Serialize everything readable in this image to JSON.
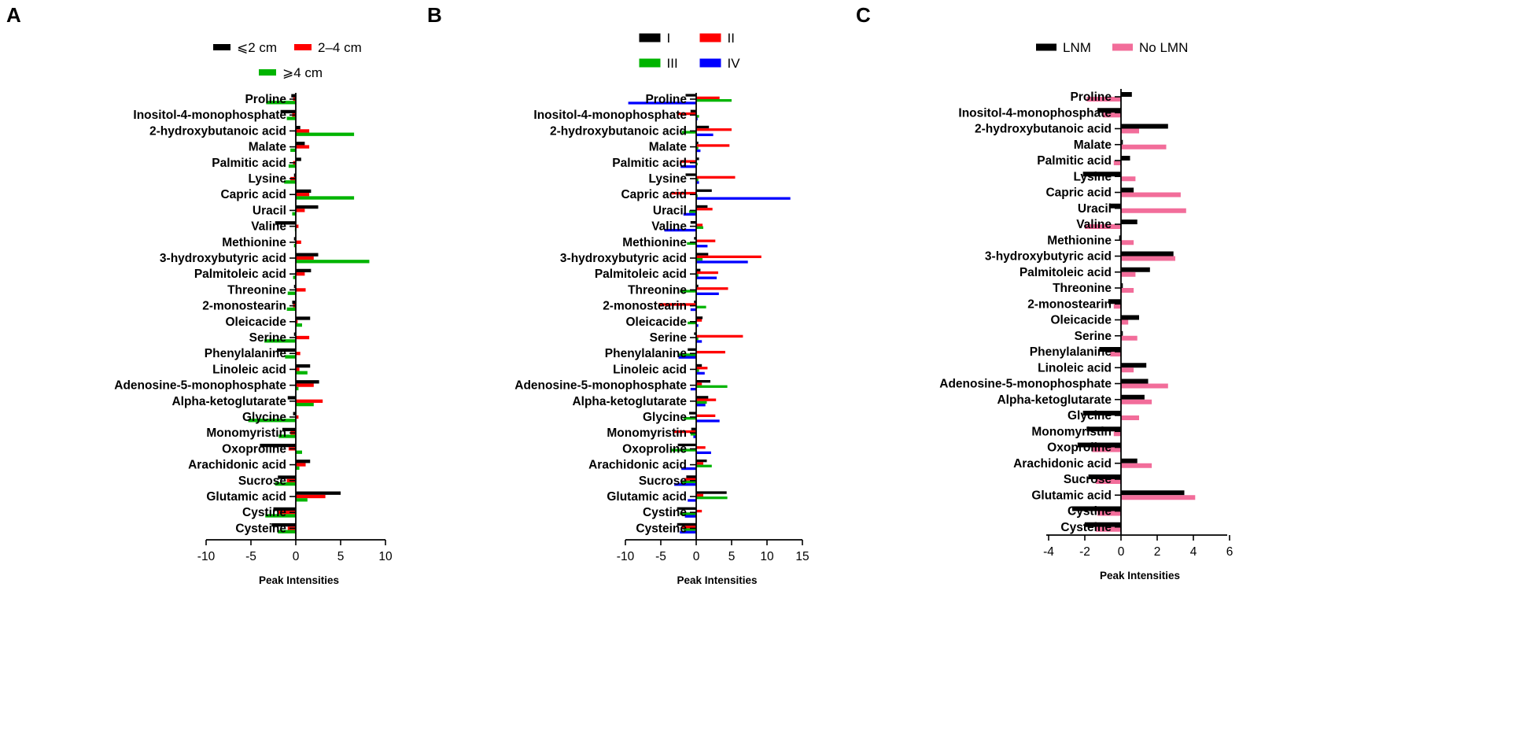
{
  "chart_data": [
    {
      "panel": "A",
      "type": "bar",
      "orientation": "horizontal",
      "xlabel": "Peak Intensities",
      "xlim": [
        -10,
        10
      ],
      "xticks": [
        -10,
        -5,
        0,
        5,
        10
      ],
      "categories": [
        "Proline",
        "Inositol-4-monophosphate",
        "2-hydroxybutanoic acid",
        "Malate",
        "Palmitic acid",
        "Lysine",
        "Capric acid",
        "Uracil",
        "Valine",
        "Methionine",
        "3-hydroxybutyric acid",
        "Palmitoleic acid",
        "Threonine",
        "2-monostearin",
        "Oleicacide",
        "Serine",
        "Phenylalanine",
        "Linoleic acid",
        "Adenosine-5-monophosphate",
        "Alpha-ketoglutarate",
        "Glycine",
        "Monomyristin",
        "Oxoproline",
        "Arachidonic acid",
        "Sucrose",
        "Glutamic acid",
        "Cystine",
        "Cysteine"
      ],
      "series": [
        {
          "name": "⩽2 cm",
          "color": "#000000",
          "values": [
            -0.5,
            -1.7,
            0.5,
            1.0,
            0.6,
            -0.2,
            1.7,
            2.5,
            -2.3,
            -0.2,
            2.5,
            1.7,
            -0.2,
            -0.4,
            1.6,
            -0.2,
            -2.1,
            1.6,
            2.6,
            -0.9,
            -0.3,
            -1.5,
            -4.0,
            1.6,
            -2.0,
            5.0,
            -2.5,
            -2.7
          ]
        },
        {
          "name": "2–4 cm",
          "color": "#ff0000",
          "values": [
            -0.3,
            -0.4,
            1.5,
            1.5,
            -0.3,
            -0.6,
            1.5,
            1.0,
            0.3,
            0.6,
            2.0,
            1.0,
            1.1,
            -0.3,
            0.2,
            1.5,
            0.5,
            0.4,
            2.0,
            3.0,
            0.3,
            -0.6,
            -0.8,
            1.1,
            -1.0,
            3.3,
            -2.0,
            -0.9
          ]
        },
        {
          "name": "⩾4 cm",
          "color": "#00b400",
          "values": [
            -3.3,
            -1.0,
            6.5,
            -0.6,
            -0.8,
            -1.3,
            6.5,
            -0.4,
            -0.1,
            -0.2,
            8.2,
            -0.3,
            -0.9,
            -1.0,
            0.7,
            -3.5,
            -1.2,
            1.3,
            0.3,
            2.0,
            -5.3,
            -1.9,
            0.7,
            0.4,
            -2.3,
            1.3,
            -3.4,
            -2.0
          ]
        }
      ]
    },
    {
      "panel": "B",
      "type": "bar",
      "orientation": "horizontal",
      "xlabel": "Peak Intensities",
      "xlim": [
        -10,
        15
      ],
      "xticks": [
        -10,
        -5,
        0,
        5,
        10,
        15
      ],
      "categories": [
        "Proline",
        "Inositol-4-monophosphate",
        "2-hydroxybutanoic acid",
        "Malate",
        "Palmitic acid",
        "Lysine",
        "Capric acid",
        "Uracil",
        "Valine",
        "Methionine",
        "3-hydroxybutyric acid",
        "Palmitoleic acid",
        "Threonine",
        "2-monostearin",
        "Oleicacide",
        "Serine",
        "Phenylalanine",
        "Linoleic acid",
        "Adenosine-5-monophosphate",
        "Alpha-ketoglutarate",
        "Glycine",
        "Monomyristin",
        "Oxoproline",
        "Arachidonic acid",
        "Sucrose",
        "Glutamic acid",
        "Cystine",
        "Cysteine"
      ],
      "series": [
        {
          "name": "I",
          "color": "#000000",
          "values": [
            -1.5,
            -0.8,
            1.8,
            0.3,
            0.4,
            -1.5,
            2.2,
            1.6,
            -0.8,
            -0.3,
            1.7,
            0.6,
            0.3,
            -0.3,
            0.9,
            -0.3,
            -1.2,
            0.8,
            2.0,
            1.7,
            -1.0,
            -0.7,
            -2.6,
            1.5,
            -1.4,
            4.3,
            -2.7,
            -2.7
          ]
        },
        {
          "name": "II",
          "color": "#ff0000",
          "values": [
            3.3,
            -2.5,
            5.0,
            4.7,
            -2.3,
            5.5,
            -3.5,
            2.3,
            0.9,
            2.7,
            9.2,
            3.1,
            4.5,
            -5.3,
            0.8,
            6.6,
            4.1,
            1.6,
            0.8,
            2.8,
            2.7,
            -3.2,
            1.3,
            1.0,
            -1.7,
            1.0,
            0.8,
            -2.0
          ]
        },
        {
          "name": "III",
          "color": "#00b400",
          "values": [
            5.0,
            0.4,
            -2.0,
            0.3,
            0.2,
            0.3,
            0.2,
            -1.0,
            1.0,
            -1.3,
            0.9,
            0.3,
            -2.3,
            1.4,
            -1.2,
            0.3,
            -2.5,
            0.4,
            4.4,
            1.5,
            -1.8,
            -0.8,
            -3.5,
            2.2,
            -2.0,
            4.4,
            -2.3,
            -1.8
          ]
        },
        {
          "name": "IV",
          "color": "#0000ff",
          "values": [
            -9.6,
            0.2,
            2.4,
            0.6,
            -2.2,
            0.4,
            13.3,
            -1.8,
            -4.5,
            1.6,
            7.3,
            2.9,
            3.2,
            -0.8,
            0.3,
            0.8,
            -2.5,
            1.2,
            -0.8,
            1.3,
            3.3,
            -0.4,
            2.1,
            -2.1,
            -3.1,
            -1.2,
            -1.6,
            -2.3
          ]
        }
      ]
    },
    {
      "panel": "C",
      "type": "bar",
      "orientation": "horizontal",
      "xlabel": "Peak Intensities",
      "xlim": [
        -4,
        6
      ],
      "xticks": [
        -4,
        -2,
        0,
        2,
        4,
        6
      ],
      "categories": [
        "Proline",
        "Inositol-4-monophosphate",
        "2-hydroxybutanoic acid",
        "Malate",
        "Palmitic acid",
        "Lysine",
        "Capric acid",
        "Uracil",
        "Valine",
        "Methionine",
        "3-hydroxybutyric acid",
        "Palmitoleic acid",
        "Threonine",
        "2-monostearin",
        "Oleicacide",
        "Serine",
        "Phenylalanine",
        "Linoleic acid",
        "Adenosine-5-monophosphate",
        "Alpha-ketoglutarate",
        "Glycine",
        "Monomyristin",
        "Oxoproline",
        "Arachidonic acid",
        "Sucrose",
        "Glutamic acid",
        "Cystine",
        "Cysteine"
      ],
      "series": [
        {
          "name": "LNM",
          "color": "#000000",
          "values": [
            0.6,
            -1.3,
            2.6,
            0.1,
            0.5,
            -2.1,
            0.7,
            -0.6,
            0.9,
            -0.1,
            2.9,
            1.6,
            0.1,
            -0.7,
            1.0,
            0.1,
            -1.2,
            1.4,
            1.5,
            1.3,
            -2.1,
            -1.9,
            -2.4,
            0.9,
            -1.8,
            3.5,
            -2.7,
            -2.0
          ]
        },
        {
          "name": "No LMN",
          "color": "#f26d9a",
          "values": [
            -1.9,
            -1.0,
            1.0,
            2.5,
            -0.4,
            0.8,
            3.3,
            3.6,
            -2.0,
            0.7,
            3.0,
            0.8,
            0.7,
            -0.4,
            0.4,
            0.9,
            -0.6,
            0.7,
            2.6,
            1.7,
            1.0,
            -0.4,
            -1.6,
            1.7,
            -1.4,
            4.1,
            -1.3,
            -1.4
          ]
        }
      ]
    }
  ]
}
